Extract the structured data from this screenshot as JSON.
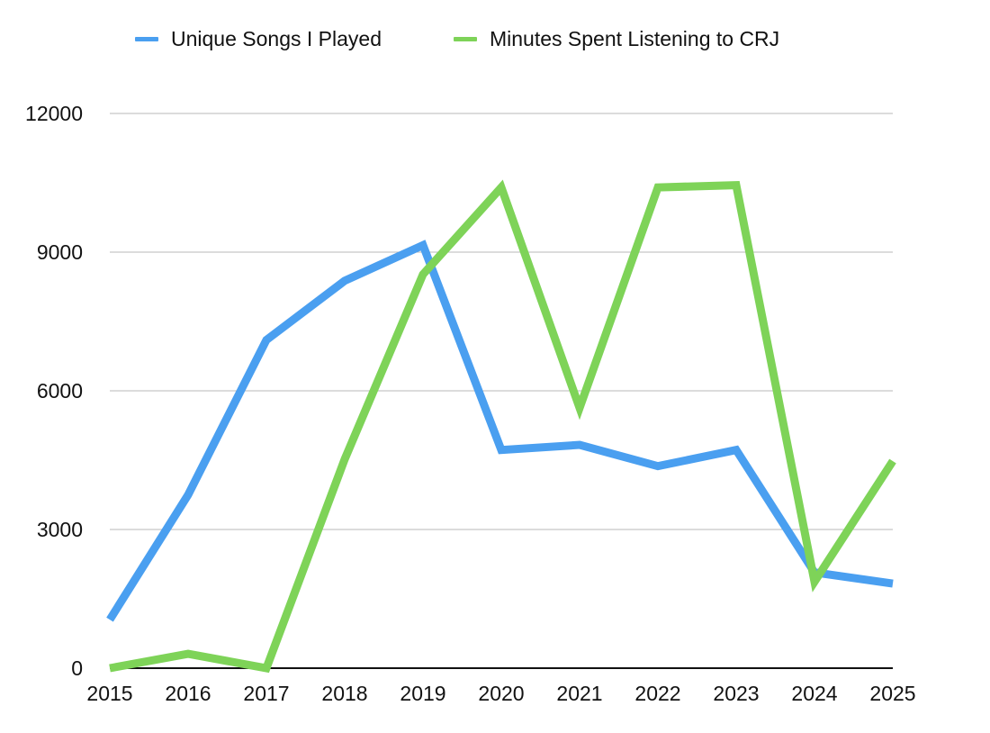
{
  "chart_data": {
    "type": "line",
    "title": "",
    "xlabel": "",
    "ylabel": "",
    "categories": [
      "2015",
      "2016",
      "2017",
      "2018",
      "2019",
      "2020",
      "2021",
      "2022",
      "2023",
      "2024",
      "2025"
    ],
    "series": [
      {
        "name": "Unique Songs I Played",
        "color": "#4a9ff0",
        "values": [
          1050,
          3750,
          7100,
          8380,
          9150,
          4720,
          4830,
          4370,
          4720,
          2070,
          1830
        ]
      },
      {
        "name": "Minutes Spent Listening to CRJ",
        "color": "#7ed358",
        "values": [
          0,
          310,
          0,
          4520,
          8520,
          10400,
          5630,
          10400,
          10450,
          1870,
          4480
        ]
      }
    ],
    "ylim": [
      0,
      12000
    ],
    "yticks": [
      0,
      3000,
      6000,
      9000,
      12000
    ],
    "grid": true,
    "legend_position": "top"
  },
  "legend": {
    "items": [
      {
        "label": "Unique Songs I Played",
        "color": "#4a9ff0"
      },
      {
        "label": "Minutes Spent Listening to CRJ",
        "color": "#7ed358"
      }
    ]
  }
}
